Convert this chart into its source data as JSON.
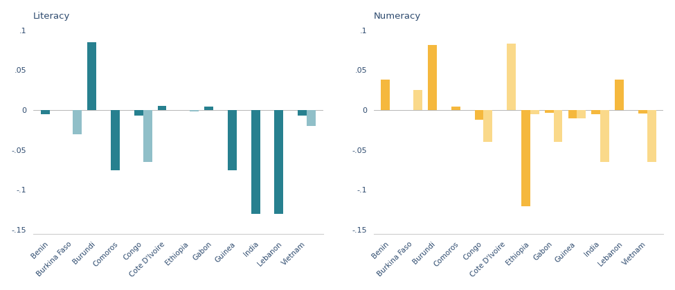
{
  "countries": [
    "Benin",
    "Burkina Faso",
    "Burundi",
    "Comoros",
    "Congo",
    "Cote D'Ivoire",
    "Ethiopia",
    "Gabon",
    "Guinea",
    "India",
    "Lebanon",
    "Vietnam"
  ],
  "literacy_dark": [
    -0.005,
    0.0,
    0.085,
    -0.075,
    -0.007,
    0.005,
    0.0,
    0.004,
    -0.075,
    -0.13,
    -0.13,
    -0.007
  ],
  "literacy_light": [
    0.0,
    -0.03,
    0.0,
    0.0,
    -0.065,
    0.0,
    -0.002,
    0.0,
    0.0,
    0.0,
    0.0,
    -0.02
  ],
  "numeracy_dark": [
    0.038,
    0.0,
    0.082,
    0.004,
    -0.012,
    0.0,
    -0.12,
    -0.003,
    -0.01,
    -0.005,
    0.038,
    -0.004
  ],
  "numeracy_light": [
    0.0,
    0.025,
    0.0,
    0.0,
    -0.04,
    0.083,
    -0.005,
    -0.04,
    -0.01,
    -0.065,
    0.0,
    -0.065
  ],
  "color_dark_teal": "#27808f",
  "color_light_teal": "#90bfc8",
  "color_dark_gold": "#f5b83d",
  "color_light_gold": "#fad98a",
  "ylabel_literacy": "Literacy",
  "ylabel_numeracy": "Numeracy",
  "ylim": [
    -0.155,
    0.11
  ],
  "yticks": [
    -0.15,
    -0.1,
    -0.05,
    0.0,
    0.05,
    0.1
  ],
  "ytick_labels": [
    "-.15",
    "-.1",
    "-.05",
    "0",
    ".05",
    ".1"
  ],
  "background_color": "#ffffff",
  "title_color": "#2d4a6e",
  "bar_width": 0.38
}
